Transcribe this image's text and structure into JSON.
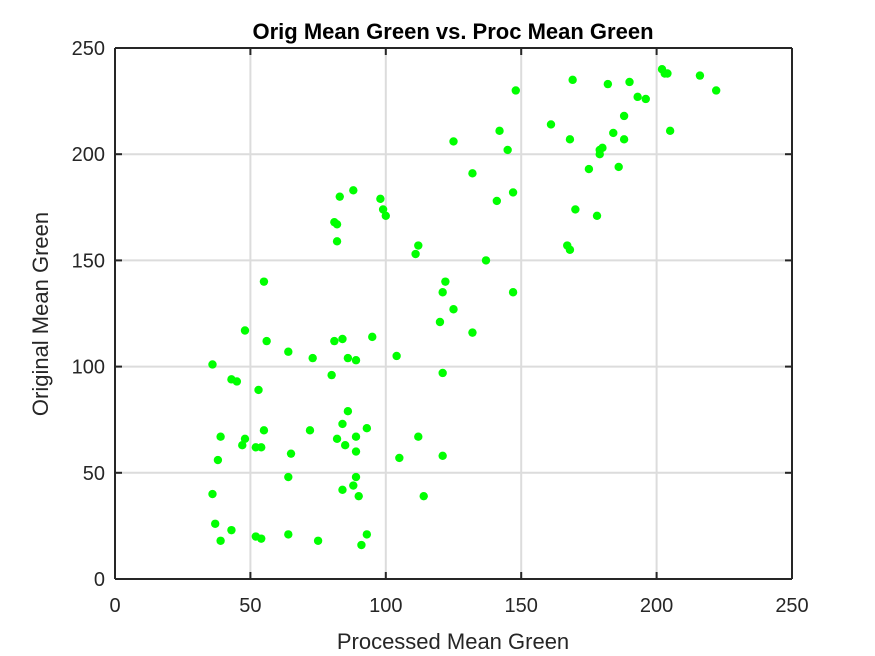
{
  "chart_data": {
    "type": "scatter",
    "title": "Orig Mean Green vs. Proc Mean Green",
    "xlabel": "Processed Mean Green",
    "ylabel": "Original Mean Green",
    "xlim": [
      0,
      250
    ],
    "ylim": [
      0,
      250
    ],
    "xticks": [
      "0",
      "50",
      "100",
      "150",
      "200",
      "250"
    ],
    "yticks": [
      "0",
      "50",
      "100",
      "150",
      "200",
      "250"
    ],
    "grid": true,
    "marker_color": "#00ff00",
    "points": [
      [
        36,
        101
      ],
      [
        36,
        40
      ],
      [
        37,
        26
      ],
      [
        38,
        56
      ],
      [
        39,
        18
      ],
      [
        39,
        67
      ],
      [
        43,
        23
      ],
      [
        43,
        94
      ],
      [
        45,
        93
      ],
      [
        47,
        63
      ],
      [
        48,
        66
      ],
      [
        48,
        117
      ],
      [
        52,
        62
      ],
      [
        52,
        20
      ],
      [
        53,
        89
      ],
      [
        54,
        19
      ],
      [
        54,
        62
      ],
      [
        55,
        70
      ],
      [
        55,
        140
      ],
      [
        56,
        112
      ],
      [
        64,
        107
      ],
      [
        64,
        48
      ],
      [
        65,
        59
      ],
      [
        64,
        21
      ],
      [
        72,
        70
      ],
      [
        73,
        104
      ],
      [
        75,
        18
      ],
      [
        80,
        96
      ],
      [
        81,
        112
      ],
      [
        81,
        168
      ],
      [
        82,
        167
      ],
      [
        82,
        66
      ],
      [
        82,
        159
      ],
      [
        83,
        180
      ],
      [
        84,
        113
      ],
      [
        84,
        73
      ],
      [
        84,
        42
      ],
      [
        85,
        63
      ],
      [
        86,
        79
      ],
      [
        86,
        104
      ],
      [
        88,
        44
      ],
      [
        88,
        183
      ],
      [
        89,
        103
      ],
      [
        89,
        67
      ],
      [
        89,
        48
      ],
      [
        89,
        60
      ],
      [
        90,
        39
      ],
      [
        91,
        16
      ],
      [
        93,
        71
      ],
      [
        93,
        21
      ],
      [
        95,
        114
      ],
      [
        98,
        179
      ],
      [
        99,
        174
      ],
      [
        100,
        171
      ],
      [
        104,
        105
      ],
      [
        105,
        57
      ],
      [
        111,
        153
      ],
      [
        112,
        157
      ],
      [
        112,
        67
      ],
      [
        114,
        39
      ],
      [
        120,
        121
      ],
      [
        121,
        135
      ],
      [
        121,
        58
      ],
      [
        121,
        97
      ],
      [
        122,
        140
      ],
      [
        125,
        206
      ],
      [
        125,
        127
      ],
      [
        132,
        191
      ],
      [
        132,
        116
      ],
      [
        137,
        150
      ],
      [
        141,
        178
      ],
      [
        142,
        211
      ],
      [
        145,
        202
      ],
      [
        147,
        182
      ],
      [
        147,
        135
      ],
      [
        148,
        230
      ],
      [
        161,
        214
      ],
      [
        167,
        157
      ],
      [
        168,
        207
      ],
      [
        168,
        155
      ],
      [
        169,
        235
      ],
      [
        170,
        174
      ],
      [
        175,
        193
      ],
      [
        178,
        171
      ],
      [
        179,
        200
      ],
      [
        179,
        202
      ],
      [
        180,
        203
      ],
      [
        182,
        233
      ],
      [
        184,
        210
      ],
      [
        186,
        194
      ],
      [
        188,
        207
      ],
      [
        188,
        218
      ],
      [
        190,
        234
      ],
      [
        193,
        227
      ],
      [
        196,
        226
      ],
      [
        202,
        240
      ],
      [
        203,
        238
      ],
      [
        204,
        238
      ],
      [
        205,
        211
      ],
      [
        216,
        237
      ],
      [
        222,
        230
      ]
    ]
  }
}
